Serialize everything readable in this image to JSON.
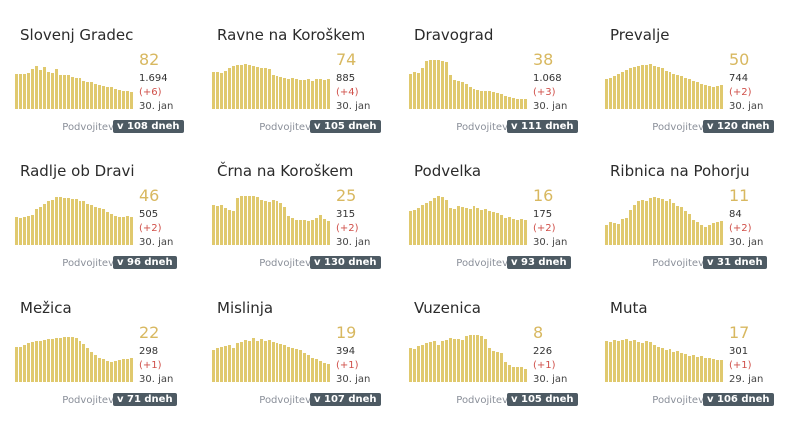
{
  "labels": {
    "doubling_prefix": "Podvojitev"
  },
  "colors": {
    "bar": "#e0c96e",
    "value": "#d8b860",
    "delta": "#d0504a",
    "badge_bg": "#4d5a63"
  },
  "municipalities": [
    {
      "name": "Slovenj Gradec",
      "value": "82",
      "total": "1.694",
      "delta": "(+6)",
      "date": "30. jan",
      "doubling": "v 108 dneh",
      "bars": [
        0.72,
        0.72,
        0.71,
        0.74,
        0.82,
        0.88,
        0.8,
        0.86,
        0.76,
        0.74,
        0.82,
        0.7,
        0.7,
        0.7,
        0.66,
        0.64,
        0.64,
        0.58,
        0.56,
        0.55,
        0.52,
        0.48,
        0.46,
        0.44,
        0.44,
        0.4,
        0.38,
        0.36,
        0.36,
        0.34
      ]
    },
    {
      "name": "Ravne na Koroškem",
      "value": "74",
      "total": "885",
      "delta": "(+4)",
      "date": "30. jan",
      "doubling": "v 105 dneh",
      "bars": [
        0.76,
        0.76,
        0.74,
        0.78,
        0.84,
        0.88,
        0.9,
        0.9,
        0.92,
        0.9,
        0.88,
        0.86,
        0.84,
        0.84,
        0.82,
        0.7,
        0.68,
        0.66,
        0.64,
        0.62,
        0.64,
        0.62,
        0.6,
        0.6,
        0.62,
        0.58,
        0.62,
        0.62,
        0.6,
        0.62
      ]
    },
    {
      "name": "Dravograd",
      "value": "38",
      "total": "1.068",
      "delta": "(+3)",
      "date": "30. jan",
      "doubling": "v 111 dneh",
      "bars": [
        0.72,
        0.76,
        0.74,
        0.84,
        0.98,
        1.0,
        1.0,
        1.0,
        0.98,
        0.96,
        0.7,
        0.6,
        0.58,
        0.56,
        0.52,
        0.44,
        0.4,
        0.38,
        0.36,
        0.36,
        0.36,
        0.34,
        0.32,
        0.3,
        0.26,
        0.24,
        0.22,
        0.2,
        0.2,
        0.2
      ]
    },
    {
      "name": "Prevalje",
      "value": "50",
      "total": "744",
      "delta": "(+2)",
      "date": "30. jan",
      "doubling": "v 120 dneh",
      "bars": [
        0.62,
        0.64,
        0.68,
        0.72,
        0.76,
        0.8,
        0.84,
        0.86,
        0.88,
        0.9,
        0.9,
        0.92,
        0.88,
        0.86,
        0.84,
        0.78,
        0.76,
        0.72,
        0.7,
        0.68,
        0.64,
        0.62,
        0.58,
        0.56,
        0.52,
        0.48,
        0.46,
        0.44,
        0.46,
        0.48
      ]
    },
    {
      "name": "Radlje ob Dravi",
      "value": "46",
      "total": "505",
      "delta": "(+2)",
      "date": "30. jan",
      "doubling": "v 96 dneh",
      "bars": [
        0.58,
        0.56,
        0.58,
        0.6,
        0.62,
        0.74,
        0.78,
        0.84,
        0.9,
        0.92,
        0.98,
        0.98,
        0.96,
        0.96,
        0.94,
        0.94,
        0.9,
        0.9,
        0.84,
        0.82,
        0.78,
        0.76,
        0.74,
        0.68,
        0.64,
        0.6,
        0.58,
        0.58,
        0.6,
        0.58
      ]
    },
    {
      "name": "Črna na Koroškem",
      "value": "25",
      "total": "315",
      "delta": "(+2)",
      "date": "30. jan",
      "doubling": "v 130 dneh",
      "bars": [
        0.82,
        0.8,
        0.82,
        0.76,
        0.72,
        0.7,
        0.96,
        1.0,
        1.0,
        1.0,
        1.0,
        0.98,
        0.92,
        0.9,
        0.88,
        0.92,
        0.9,
        0.86,
        0.78,
        0.6,
        0.56,
        0.52,
        0.52,
        0.52,
        0.5,
        0.52,
        0.56,
        0.62,
        0.54,
        0.5
      ]
    },
    {
      "name": "Podvelka",
      "value": "16",
      "total": "175",
      "delta": "(+2)",
      "date": "30. jan",
      "doubling": "v 93 dneh",
      "bars": [
        0.7,
        0.72,
        0.76,
        0.82,
        0.86,
        0.9,
        0.96,
        1.0,
        0.98,
        0.92,
        0.76,
        0.74,
        0.8,
        0.78,
        0.76,
        0.74,
        0.8,
        0.76,
        0.72,
        0.74,
        0.7,
        0.68,
        0.66,
        0.62,
        0.56,
        0.58,
        0.54,
        0.52,
        0.54,
        0.52
      ]
    },
    {
      "name": "Ribnica na Pohorju",
      "value": "11",
      "total": "84",
      "delta": "(+2)",
      "date": "30. jan",
      "doubling": "v 31 dneh",
      "bars": [
        0.4,
        0.46,
        0.44,
        0.42,
        0.54,
        0.56,
        0.72,
        0.82,
        0.9,
        0.92,
        0.9,
        0.96,
        0.98,
        0.96,
        0.94,
        0.9,
        0.94,
        0.86,
        0.8,
        0.78,
        0.7,
        0.64,
        0.52,
        0.46,
        0.4,
        0.36,
        0.4,
        0.44,
        0.46,
        0.48
      ]
    },
    {
      "name": "Mežica",
      "value": "22",
      "total": "298",
      "delta": "(+1)",
      "date": "30. jan",
      "doubling": "v 71 dneh",
      "bars": [
        0.72,
        0.72,
        0.76,
        0.8,
        0.82,
        0.84,
        0.84,
        0.86,
        0.88,
        0.88,
        0.9,
        0.9,
        0.92,
        0.92,
        0.92,
        0.9,
        0.84,
        0.78,
        0.7,
        0.62,
        0.56,
        0.5,
        0.46,
        0.42,
        0.4,
        0.42,
        0.44,
        0.46,
        0.46,
        0.48
      ]
    },
    {
      "name": "Mislinja",
      "value": "19",
      "total": "394",
      "delta": "(+1)",
      "date": "30. jan",
      "doubling": "v 107 dneh",
      "bars": [
        0.66,
        0.7,
        0.72,
        0.74,
        0.76,
        0.7,
        0.8,
        0.82,
        0.86,
        0.84,
        0.9,
        0.84,
        0.88,
        0.84,
        0.86,
        0.82,
        0.8,
        0.78,
        0.76,
        0.72,
        0.7,
        0.68,
        0.66,
        0.6,
        0.56,
        0.5,
        0.46,
        0.42,
        0.38,
        0.36
      ]
    },
    {
      "name": "Vuzenica",
      "value": "8",
      "total": "226",
      "delta": "(+1)",
      "date": "30. jan",
      "doubling": "v 105 dneh",
      "bars": [
        0.7,
        0.68,
        0.74,
        0.76,
        0.8,
        0.82,
        0.84,
        0.76,
        0.84,
        0.86,
        0.9,
        0.88,
        0.88,
        0.86,
        0.94,
        0.96,
        0.96,
        0.96,
        0.94,
        0.88,
        0.7,
        0.64,
        0.62,
        0.6,
        0.4,
        0.34,
        0.3,
        0.3,
        0.3,
        0.26
      ]
    },
    {
      "name": "Muta",
      "value": "17",
      "total": "301",
      "delta": "(+1)",
      "date": "29. jan",
      "doubling": "v 106 dneh",
      "bars": [
        0.84,
        0.82,
        0.86,
        0.84,
        0.86,
        0.88,
        0.84,
        0.86,
        0.82,
        0.8,
        0.84,
        0.82,
        0.76,
        0.72,
        0.7,
        0.66,
        0.68,
        0.62,
        0.64,
        0.6,
        0.58,
        0.54,
        0.56,
        0.52,
        0.54,
        0.5,
        0.48,
        0.46,
        0.44,
        0.44
      ]
    }
  ]
}
